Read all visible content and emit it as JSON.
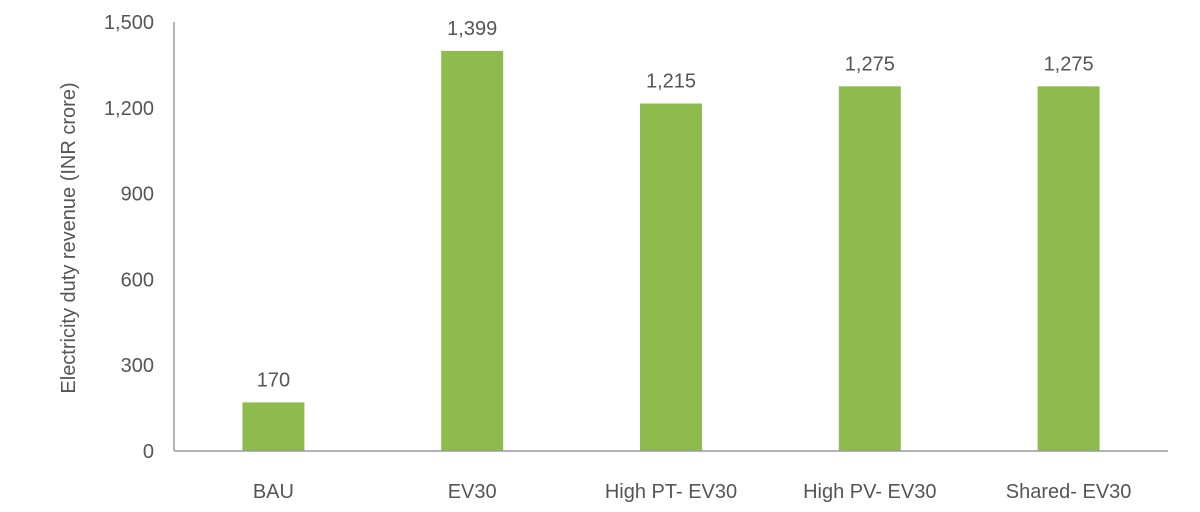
{
  "chart_data": {
    "type": "bar",
    "title": "",
    "xlabel": "",
    "ylabel": "Electricity duty revenue (INR crore)",
    "categories": [
      "BAU",
      "EV30",
      "High PT- EV30",
      "High PV- EV30",
      "Shared- EV30"
    ],
    "values": [
      170,
      1399,
      1215,
      1275,
      1275
    ],
    "value_labels": [
      "170",
      "1,399",
      "1,215",
      "1,275",
      "1,275"
    ],
    "ylim": [
      0,
      1500
    ],
    "yticks": [
      0,
      300,
      600,
      900,
      1200,
      1500
    ],
    "ytick_labels": [
      "0",
      "300",
      "600",
      "900",
      "1,200",
      "1,500"
    ],
    "grid": false,
    "legend": "none",
    "bar_color": "#8fbb4e"
  }
}
